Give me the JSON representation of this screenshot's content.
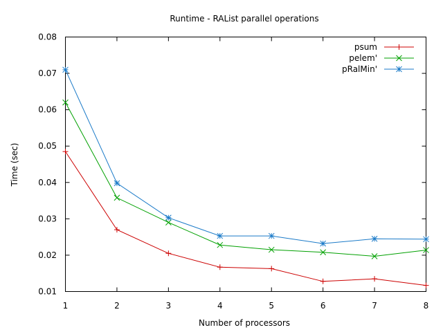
{
  "chart_data": {
    "type": "line",
    "title": "Runtime - RAList parallel operations",
    "xlabel": "Number of processors",
    "ylabel": "Time (sec)",
    "xlim": [
      1,
      8
    ],
    "ylim": [
      0.01,
      0.08
    ],
    "xticks": [
      1,
      2,
      3,
      4,
      5,
      6,
      7,
      8
    ],
    "yticks": [
      0.01,
      0.02,
      0.03,
      0.04,
      0.05,
      0.06,
      0.07,
      0.08
    ],
    "grid": false,
    "legend": "top-right",
    "x": [
      1,
      2,
      3,
      4,
      5,
      6,
      7,
      8
    ],
    "series": [
      {
        "name": "psum",
        "color": "#cc0000",
        "marker": "plus",
        "values": [
          0.0485,
          0.027,
          0.0205,
          0.0167,
          0.0163,
          0.0128,
          0.0135,
          0.0117
        ]
      },
      {
        "name": "pelem'",
        "color": "#00a000",
        "marker": "cross",
        "values": [
          0.062,
          0.0358,
          0.029,
          0.0228,
          0.0215,
          0.0208,
          0.0197,
          0.0214
        ]
      },
      {
        "name": "pRalMin'",
        "color": "#1a7ac8",
        "marker": "star",
        "values": [
          0.071,
          0.0398,
          0.0303,
          0.0253,
          0.0253,
          0.0232,
          0.0245,
          0.0244
        ]
      }
    ]
  }
}
